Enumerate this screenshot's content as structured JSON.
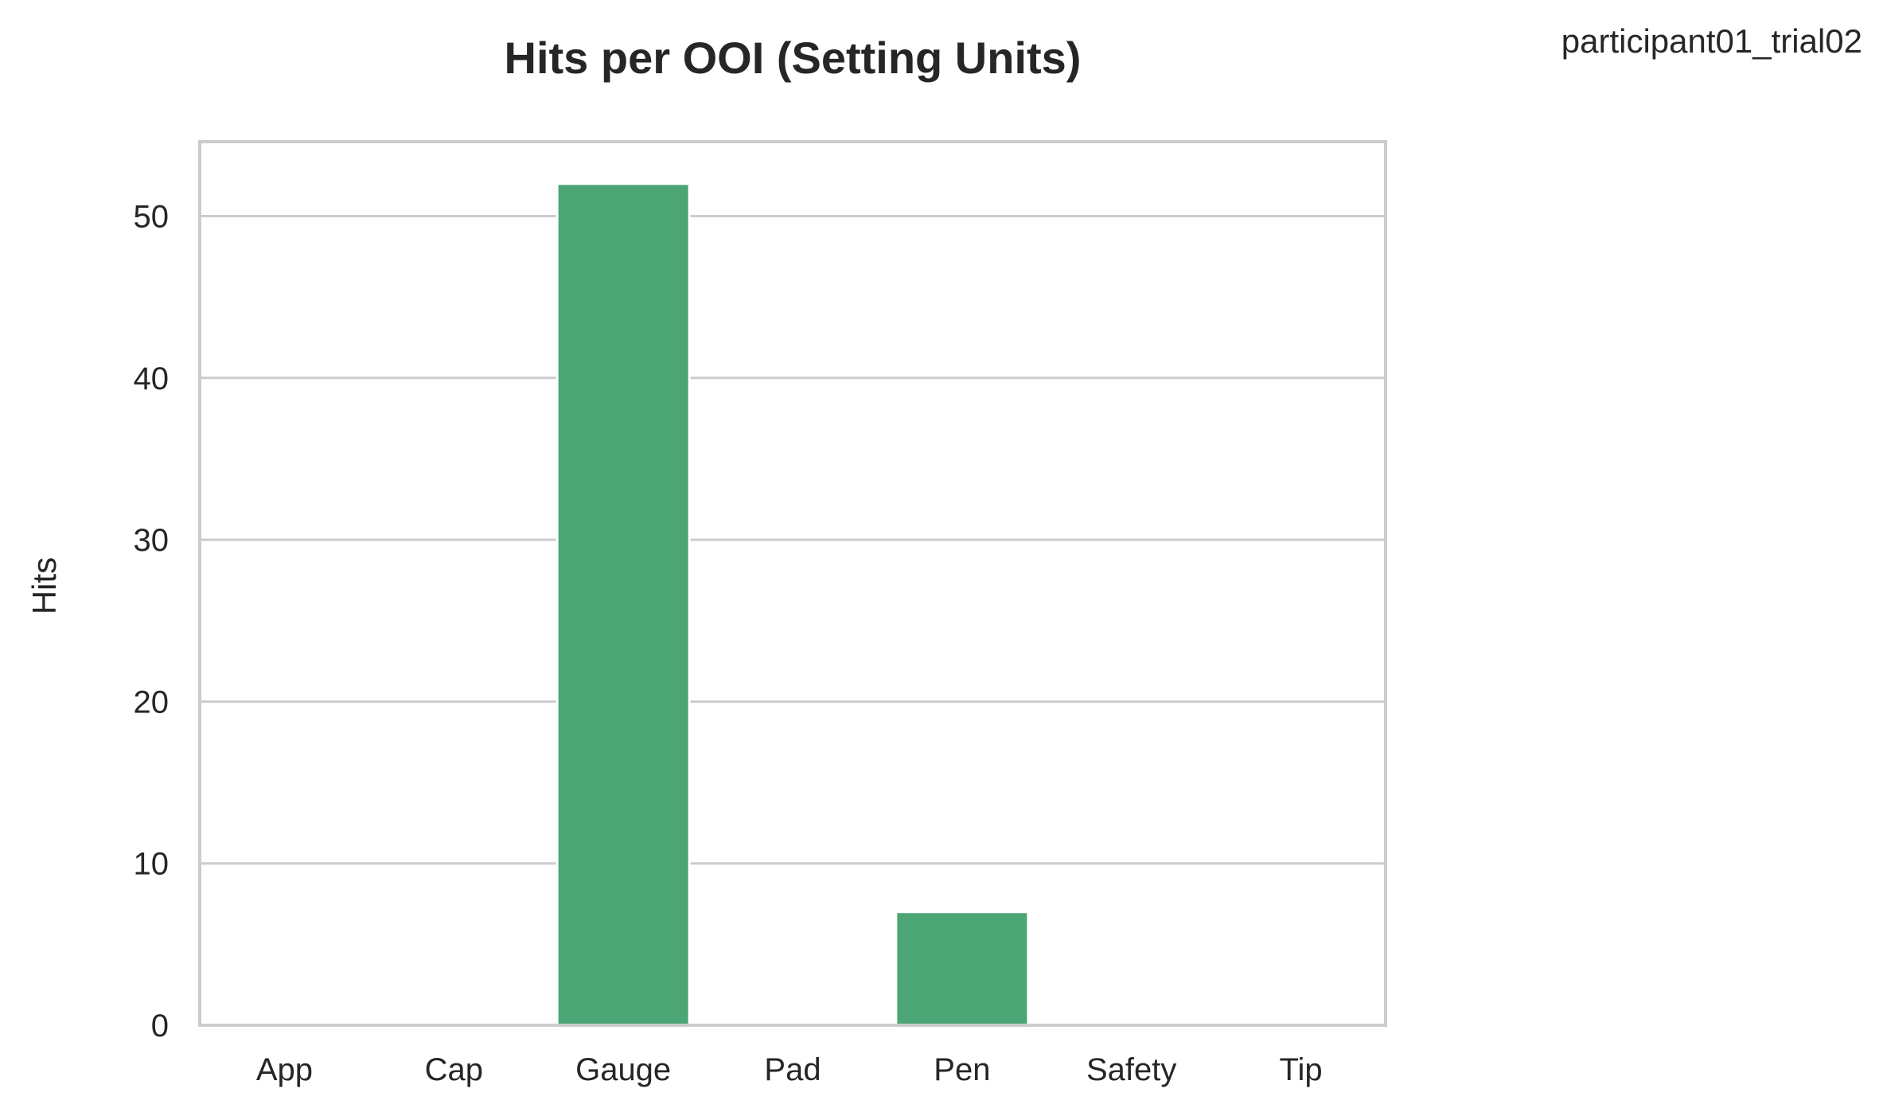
{
  "chart_data": {
    "type": "bar",
    "title": "Hits per OOI (Setting Units)",
    "corner_label": "participant01_trial02",
    "xlabel": "",
    "ylabel": "Hits",
    "categories": [
      "App",
      "Cap",
      "Gauge",
      "Pad",
      "Pen",
      "Safety",
      "Tip"
    ],
    "values": [
      0,
      0,
      52,
      0,
      7,
      0,
      0
    ],
    "yticks": [
      0,
      10,
      20,
      30,
      40,
      50
    ],
    "ylim": [
      0,
      54.6
    ],
    "grid": "horizontal",
    "bar_color": "#4ca574",
    "grid_color": "#cccccc"
  }
}
